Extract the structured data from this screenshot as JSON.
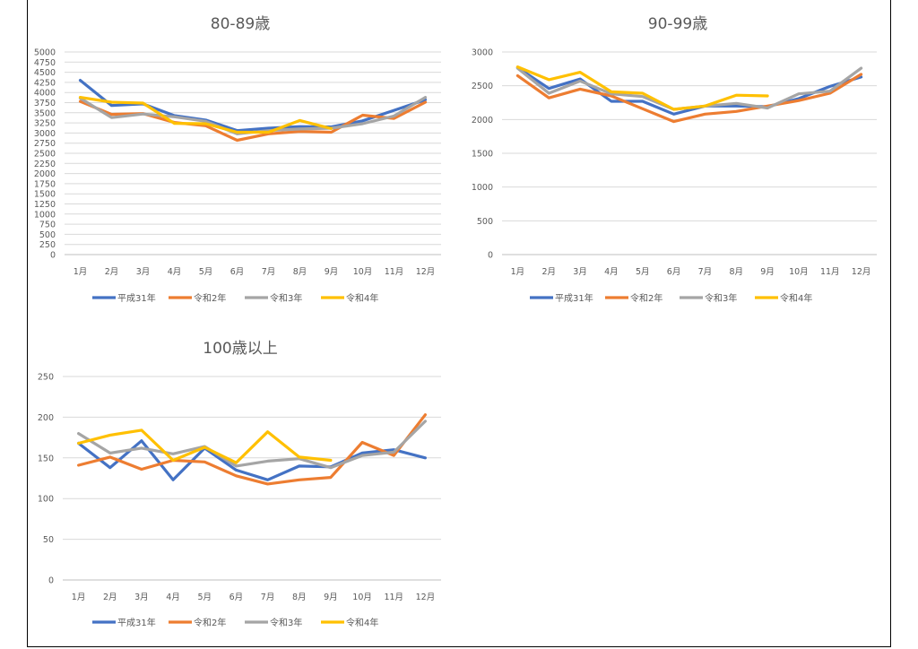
{
  "colors": {
    "series": [
      "#4472C4",
      "#ED7D31",
      "#A5A5A5",
      "#FFC000"
    ],
    "grid": "#d9d9d9",
    "axis": "#595959",
    "text": "#595959",
    "title": "#595959"
  },
  "chart_data": [
    {
      "type": "line",
      "title": "80-89歳",
      "categories": [
        "1月",
        "2月",
        "3月",
        "4月",
        "5月",
        "6月",
        "7月",
        "8月",
        "9月",
        "10月",
        "11月",
        "12月"
      ],
      "ylim": [
        0,
        5000
      ],
      "yticks": [
        "0",
        "250",
        "500",
        "750",
        "1000",
        "1250",
        "1500",
        "1750",
        "2000",
        "2250",
        "2500",
        "2750",
        "3000",
        "3250",
        "3500",
        "3750",
        "4000",
        "4250",
        "4500",
        "4750",
        "5000"
      ],
      "grid": true,
      "legend": "bottom",
      "series": [
        {
          "name": "平成31年",
          "values": [
            4300,
            3680,
            3720,
            3430,
            3320,
            3060,
            3120,
            3160,
            3150,
            3300,
            3560,
            3820
          ]
        },
        {
          "name": "令和2年",
          "values": [
            3780,
            3460,
            3480,
            3260,
            3180,
            2820,
            2980,
            3040,
            3020,
            3440,
            3360,
            3760
          ]
        },
        {
          "name": "令和3年",
          "values": [
            3860,
            3380,
            3470,
            3400,
            3290,
            2980,
            3060,
            3100,
            3120,
            3230,
            3420,
            3880
          ]
        },
        {
          "name": "令和4年",
          "values": [
            3880,
            3760,
            3740,
            3240,
            3230,
            3020,
            3020,
            3310,
            3110,
            null,
            null,
            null
          ]
        }
      ]
    },
    {
      "type": "line",
      "title": "90-99歳",
      "categories": [
        "1月",
        "2月",
        "3月",
        "4月",
        "5月",
        "6月",
        "7月",
        "8月",
        "9月",
        "10月",
        "11月",
        "12月"
      ],
      "ylim": [
        0,
        3000
      ],
      "yticks": [
        "0",
        "500",
        "1000",
        "1500",
        "2000",
        "2500",
        "3000"
      ],
      "grid": true,
      "legend": "bottom",
      "series": [
        {
          "name": "平成31年",
          "values": [
            2770,
            2460,
            2600,
            2270,
            2270,
            2080,
            2200,
            2200,
            2190,
            2310,
            2490,
            2630
          ]
        },
        {
          "name": "令和2年",
          "values": [
            2650,
            2320,
            2450,
            2350,
            2160,
            1970,
            2080,
            2120,
            2200,
            2280,
            2390,
            2670
          ]
        },
        {
          "name": "令和3年",
          "values": [
            2760,
            2390,
            2570,
            2380,
            2340,
            2150,
            2200,
            2240,
            2170,
            2380,
            2420,
            2760
          ]
        },
        {
          "name": "令和4年",
          "values": [
            2780,
            2590,
            2700,
            2410,
            2390,
            2150,
            2200,
            2360,
            2350,
            null,
            null,
            null
          ]
        }
      ]
    },
    {
      "type": "line",
      "title": "100歳以上",
      "categories": [
        "1月",
        "2月",
        "3月",
        "4月",
        "5月",
        "6月",
        "7月",
        "8月",
        "9月",
        "10月",
        "11月",
        "12月"
      ],
      "ylim": [
        0,
        250
      ],
      "yticks": [
        "0",
        "50",
        "100",
        "150",
        "200",
        "250"
      ],
      "grid": true,
      "legend": "bottom",
      "series": [
        {
          "name": "平成31年",
          "values": [
            168,
            138,
            171,
            123,
            162,
            135,
            123,
            140,
            139,
            156,
            160,
            150
          ]
        },
        {
          "name": "令和2年",
          "values": [
            141,
            151,
            136,
            147,
            145,
            128,
            118,
            123,
            126,
            169,
            153,
            203
          ]
        },
        {
          "name": "令和3年",
          "values": [
            180,
            156,
            162,
            155,
            164,
            140,
            146,
            149,
            138,
            153,
            157,
            195
          ]
        },
        {
          "name": "令和4年",
          "values": [
            168,
            178,
            184,
            147,
            163,
            144,
            182,
            151,
            147,
            null,
            null,
            null
          ]
        }
      ]
    }
  ]
}
